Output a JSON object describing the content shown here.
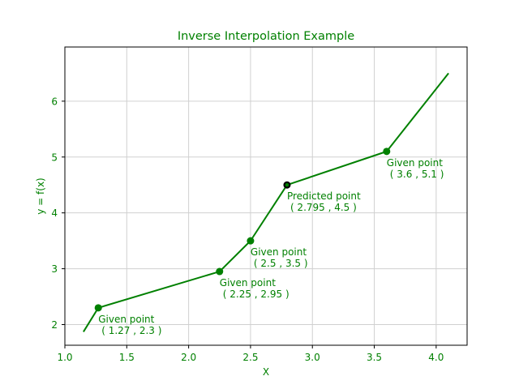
{
  "colors": {
    "accent": "#008000",
    "predicted_marker": "#000000",
    "grid": "#d0d0d0",
    "frame": "#000000",
    "background": "#ffffff"
  },
  "chart_data": {
    "type": "line",
    "title": "Inverse Interpolation Example",
    "xlabel": "X",
    "ylabel": "y = f(x)",
    "xlim": [
      1.0,
      4.25
    ],
    "ylim": [
      1.63,
      6.97
    ],
    "xticks": [
      1.0,
      1.5,
      2.0,
      2.5,
      3.0,
      3.5,
      4.0
    ],
    "xtick_labels": [
      "1.0",
      "1.5",
      "2.0",
      "2.5",
      "3.0",
      "3.5",
      "4.0"
    ],
    "yticks": [
      2,
      3,
      4,
      5,
      6
    ],
    "ytick_labels": [
      "2",
      "3",
      "4",
      "5",
      "6"
    ],
    "grid": true,
    "legend": "none",
    "series": [
      {
        "x": [
          1.15,
          1.27,
          2.25,
          2.5,
          2.795,
          3.6,
          4.1
        ],
        "y": [
          1.87,
          2.3,
          2.95,
          3.5,
          4.5,
          5.1,
          6.5
        ],
        "color": "#008000"
      }
    ],
    "points": [
      {
        "x": 1.27,
        "y": 2.3,
        "kind": "given",
        "label": "Given point",
        "coord": "( 1.27 , 2.3 )"
      },
      {
        "x": 2.25,
        "y": 2.95,
        "kind": "given",
        "label": "Given point",
        "coord": "( 2.25 , 2.95 )"
      },
      {
        "x": 2.5,
        "y": 3.5,
        "kind": "given",
        "label": "Given point",
        "coord": "( 2.5 , 3.5 )"
      },
      {
        "x": 2.795,
        "y": 4.5,
        "kind": "predicted",
        "label": "Predicted point",
        "coord": "( 2.795 , 4.5 )"
      },
      {
        "x": 3.6,
        "y": 5.1,
        "kind": "given",
        "label": "Given point",
        "coord": "( 3.6 , 5.1 )"
      }
    ]
  }
}
